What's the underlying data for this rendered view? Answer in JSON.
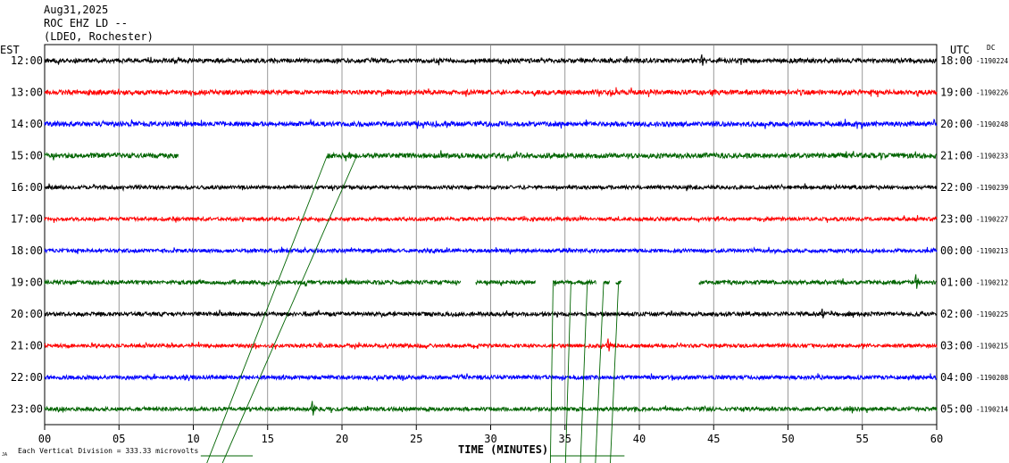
{
  "header": {
    "date": "Aug31,2025",
    "station": "ROC EHZ LD --",
    "network": "(LDEO, Rochester)"
  },
  "labels": {
    "left_tz": "EST",
    "right_tz": "UTC",
    "dc": "DC",
    "x_axis": "TIME (MINUTES)",
    "scale_note": "Each Vertical Division =  333.33 microvolts",
    "corner_mark": "JA"
  },
  "colors": {
    "cycle": [
      "#000000",
      "#ff0000",
      "#0000ff",
      "#006400"
    ],
    "grid": "#808080",
    "background": "#ffffff"
  },
  "chart_data": {
    "type": "line",
    "title": "ROC EHZ LD -- (LDEO, Rochester)",
    "xlabel": "TIME (MINUTES)",
    "xlim": [
      0,
      60
    ],
    "x_ticks": [
      "00",
      "05",
      "10",
      "15",
      "20",
      "25",
      "30",
      "35",
      "40",
      "45",
      "50",
      "55",
      "60"
    ],
    "vertical_division_microvolts": 333.33,
    "grid": true,
    "rows": [
      {
        "est": "12:00",
        "utc": "18:00",
        "dc": "-1190224",
        "color": "#000000",
        "amp": 2.4,
        "segments": [
          [
            0,
            60
          ]
        ]
      },
      {
        "est": "13:00",
        "utc": "19:00",
        "dc": "-1190226",
        "color": "#ff0000",
        "amp": 2.6,
        "segments": [
          [
            0,
            60
          ]
        ]
      },
      {
        "est": "14:00",
        "utc": "20:00",
        "dc": "-1190248",
        "color": "#0000ff",
        "amp": 2.6,
        "segments": [
          [
            0,
            60
          ]
        ]
      },
      {
        "est": "15:00",
        "utc": "21:00",
        "dc": "-1190233",
        "color": "#006400",
        "amp": 2.8,
        "segments": [
          [
            0,
            9.0
          ],
          [
            19.0,
            60
          ]
        ]
      },
      {
        "est": "16:00",
        "utc": "22:00",
        "dc": "-1190239",
        "color": "#000000",
        "amp": 2.0,
        "segments": [
          [
            0,
            60
          ]
        ]
      },
      {
        "est": "17:00",
        "utc": "23:00",
        "dc": "-1190227",
        "color": "#ff0000",
        "amp": 2.0,
        "segments": [
          [
            0,
            60
          ]
        ]
      },
      {
        "est": "18:00",
        "utc": "00:00",
        "dc": "-1190213",
        "color": "#0000ff",
        "amp": 2.0,
        "segments": [
          [
            0,
            60
          ]
        ]
      },
      {
        "est": "19:00",
        "utc": "01:00",
        "dc": "-1190212",
        "color": "#006400",
        "amp": 2.2,
        "segments": [
          [
            0,
            28.0
          ],
          [
            29.0,
            33.0
          ],
          [
            34.2,
            37.1
          ],
          [
            37.6,
            38.0
          ],
          [
            38.4,
            38.8
          ],
          [
            44.0,
            60
          ]
        ]
      },
      {
        "est": "20:00",
        "utc": "02:00",
        "dc": "-1190225",
        "color": "#000000",
        "amp": 2.2,
        "segments": [
          [
            0,
            60
          ]
        ]
      },
      {
        "est": "21:00",
        "utc": "03:00",
        "dc": "-1190215",
        "color": "#ff0000",
        "amp": 2.0,
        "segments": [
          [
            0,
            60
          ]
        ]
      },
      {
        "est": "22:00",
        "utc": "04:00",
        "dc": "-1190208",
        "color": "#0000ff",
        "amp": 2.2,
        "segments": [
          [
            0,
            60
          ]
        ]
      },
      {
        "est": "23:00",
        "utc": "05:00",
        "dc": "-1190214",
        "color": "#006400",
        "amp": 2.2,
        "segments": [
          [
            0,
            60
          ]
        ]
      }
    ],
    "spikes": [
      {
        "row": 0,
        "minute": 44.2,
        "size": 7
      },
      {
        "row": 3,
        "minute": 20.5,
        "size": 4
      },
      {
        "row": 7,
        "minute": 58.6,
        "size": 9
      },
      {
        "row": 8,
        "minute": 52.3,
        "size": 6
      },
      {
        "row": 9,
        "minute": 37.9,
        "size": 8
      },
      {
        "row": 11,
        "minute": 18.0,
        "size": 9
      }
    ],
    "transients": [
      {
        "from": [
          19.0,
          3
        ],
        "to": [
          10.5,
          13.2
        ]
      },
      {
        "from": [
          21.0,
          3
        ],
        "to": [
          11.5,
          13.2
        ]
      },
      {
        "from": [
          34.2,
          7
        ],
        "to": [
          34.0,
          13.2
        ]
      },
      {
        "from": [
          35.4,
          7
        ],
        "to": [
          35.0,
          13.2
        ]
      },
      {
        "from": [
          36.5,
          7
        ],
        "to": [
          36.0,
          13.2
        ]
      },
      {
        "from": [
          37.6,
          7
        ],
        "to": [
          37.0,
          13.2
        ]
      },
      {
        "from": [
          38.6,
          7
        ],
        "to": [
          38.0,
          13.2
        ]
      }
    ]
  }
}
